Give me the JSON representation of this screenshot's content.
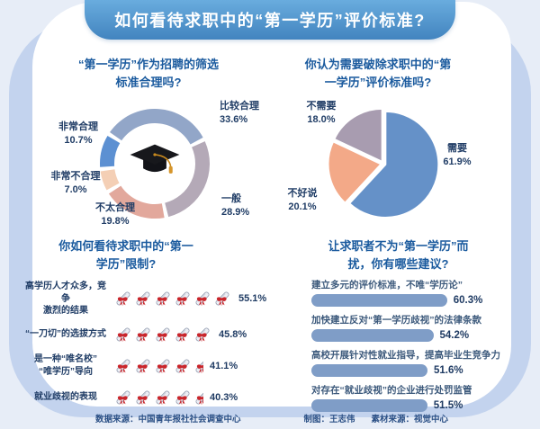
{
  "title": "如何看待求职中的“第一学历”评价标准?",
  "footer": {
    "data_source": "数据来源：中国青年报社社会调查中心",
    "author": "制图：王志伟",
    "material_source": "素材来源：视觉中心"
  },
  "colors": {
    "title_bar": "#4a8fc7",
    "heading_text": "#1a5a9e",
    "label_text": "#203d66",
    "bar_fill": "#7f9dc7",
    "accent_frame": "#c3d3ee",
    "ribbon_red": "#c9252b"
  },
  "chart_data": [
    {
      "id": "rationality-donut",
      "type": "donut",
      "title_lines": [
        "“第一学历”作为招聘的筛选",
        "标准合理吗?"
      ],
      "center_icon": "graduation-cap",
      "start_angle_deg": -57.24,
      "segments": [
        {
          "label": "比较合理",
          "value": 33.6,
          "color": "#92a6c8"
        },
        {
          "label": "一般",
          "value": 28.9,
          "color": "#b4a9b7"
        },
        {
          "label": "不太合理",
          "value": 19.8,
          "color": "#e2a89c"
        },
        {
          "label": "非常不合理",
          "value": 7.0,
          "color": "#f4cfb5"
        },
        {
          "label": "非常合理",
          "value": 10.7,
          "color": "#5c90d2"
        }
      ]
    },
    {
      "id": "break-standard-pie",
      "type": "pie",
      "title_lines": [
        "你认为需要破除求职中的“第",
        "一学历”评价标准吗?"
      ],
      "start_angle_deg": 0,
      "segments": [
        {
          "label": "需要",
          "value": 61.9,
          "color": "#6591c8"
        },
        {
          "label": "不好说",
          "value": 20.1,
          "color": "#f3a988"
        },
        {
          "label": "不需要",
          "value": 18.0,
          "color": "#a89cb0"
        }
      ]
    },
    {
      "id": "limitation-pictogram",
      "type": "pictogram",
      "title_lines": [
        "你如何看待求职中的“第一",
        "学历”限制?"
      ],
      "icon": "diploma-scroll",
      "rows": [
        {
          "label_lines": [
            "高学历人才众多，竞争",
            "激烈的结果"
          ],
          "value": 55.1,
          "icons": 6
        },
        {
          "label_lines": [
            "“一刀切”的选拔方式"
          ],
          "value": 45.8,
          "icons": 5
        },
        {
          "label_lines": [
            "是一种“唯名校”",
            "“唯学历”导向"
          ],
          "value": 41.1,
          "icons": 4.5
        },
        {
          "label_lines": [
            "就业歧视的表现"
          ],
          "value": 40.3,
          "icons": 4.5
        }
      ]
    },
    {
      "id": "suggestions-bar",
      "type": "bar",
      "title_lines": [
        "让求职者不为“第一学历”而",
        "扰，你有哪些建议?"
      ],
      "unit": "%",
      "xlim": [
        0,
        100
      ],
      "items": [
        {
          "label": "建立多元的评价标准，不唯“学历论”",
          "value": 60.3
        },
        {
          "label": "加快建立反对“第一学历歧视”的法律条款",
          "value": 54.2
        },
        {
          "label": "高校开展针对性就业指导，提高毕业生竞争力",
          "value": 51.6
        },
        {
          "label": "对存在“就业歧视”的企业进行处罚监管",
          "value": 51.5
        }
      ]
    }
  ]
}
